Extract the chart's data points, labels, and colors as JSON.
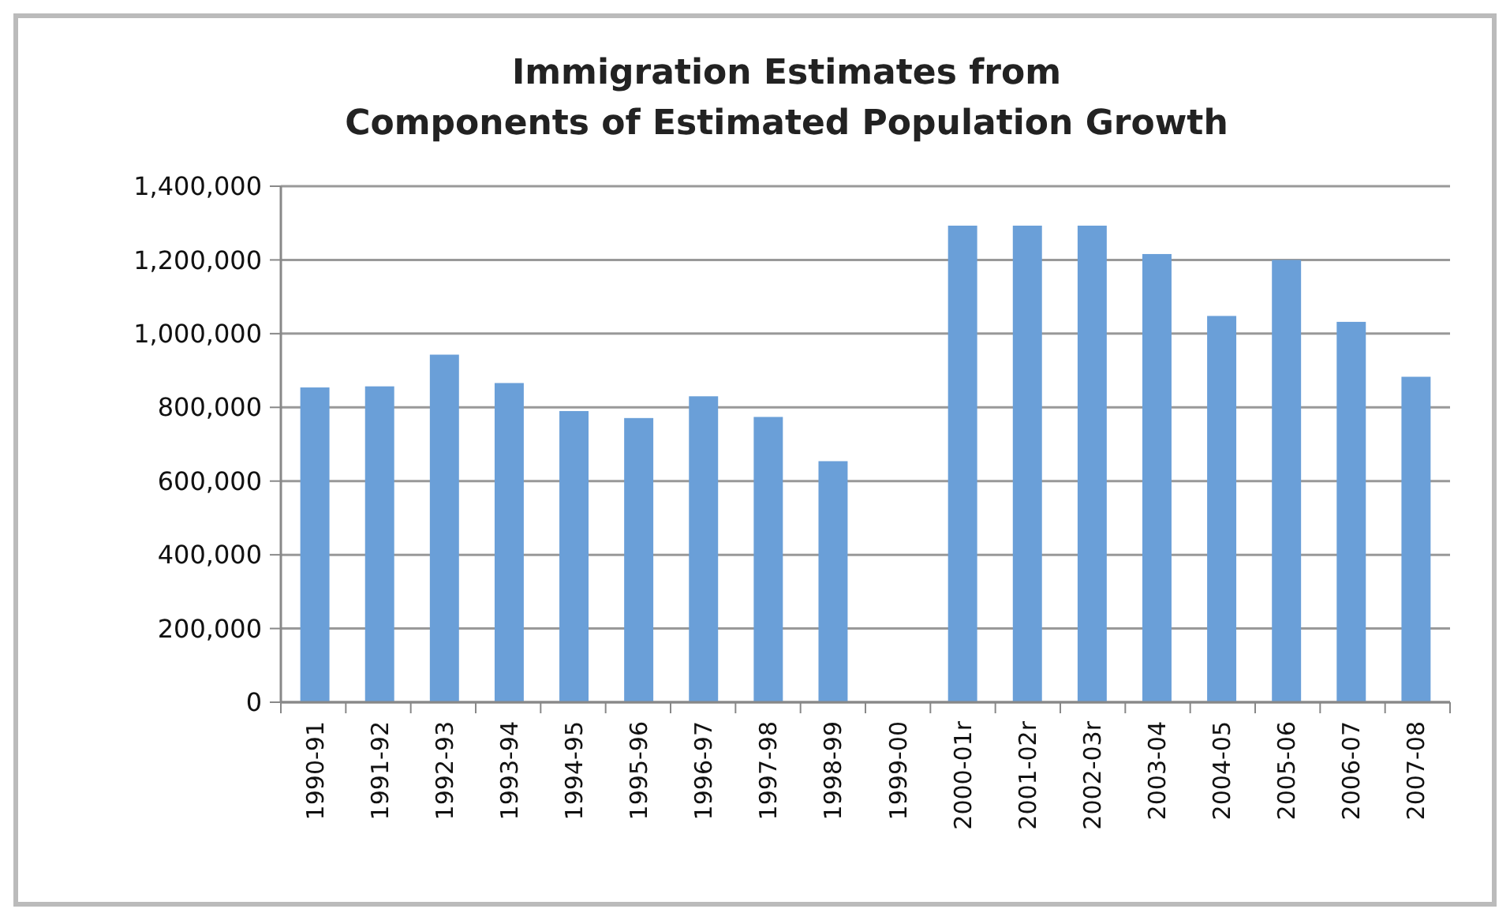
{
  "chart_data": {
    "type": "bar",
    "title": "Immigration Estimates from\nComponents of Estimated Population Growth",
    "categories": [
      "1990-91",
      "1991-92",
      "1992-93",
      "1993-94",
      "1994-95",
      "1995-96",
      "1996-97",
      "1997-98",
      "1998-99",
      "1999-00",
      "2000-01r",
      "2001-02r",
      "2002-03r",
      "2003-04",
      "2004-05",
      "2005-06",
      "2006-07",
      "2007-08"
    ],
    "values": [
      854000,
      857000,
      943000,
      866000,
      790000,
      771000,
      830000,
      774000,
      654000,
      null,
      1293000,
      1293000,
      1293000,
      1216000,
      1048000,
      1200000,
      1032000,
      883000
    ],
    "color": "#6a9fd8",
    "ylim": [
      0,
      1400000
    ],
    "yticks": [
      {
        "value": 0,
        "label": "0"
      },
      {
        "value": 200000,
        "label": "200,000"
      },
      {
        "value": 400000,
        "label": "400,000"
      },
      {
        "value": 600000,
        "label": "600,000"
      },
      {
        "value": 800000,
        "label": "800,000"
      },
      {
        "value": 1000000,
        "label": "1,000,000"
      },
      {
        "value": 1200000,
        "label": "1,200,000"
      },
      {
        "value": 1400000,
        "label": "1,400,000"
      }
    ],
    "grid": "y"
  }
}
